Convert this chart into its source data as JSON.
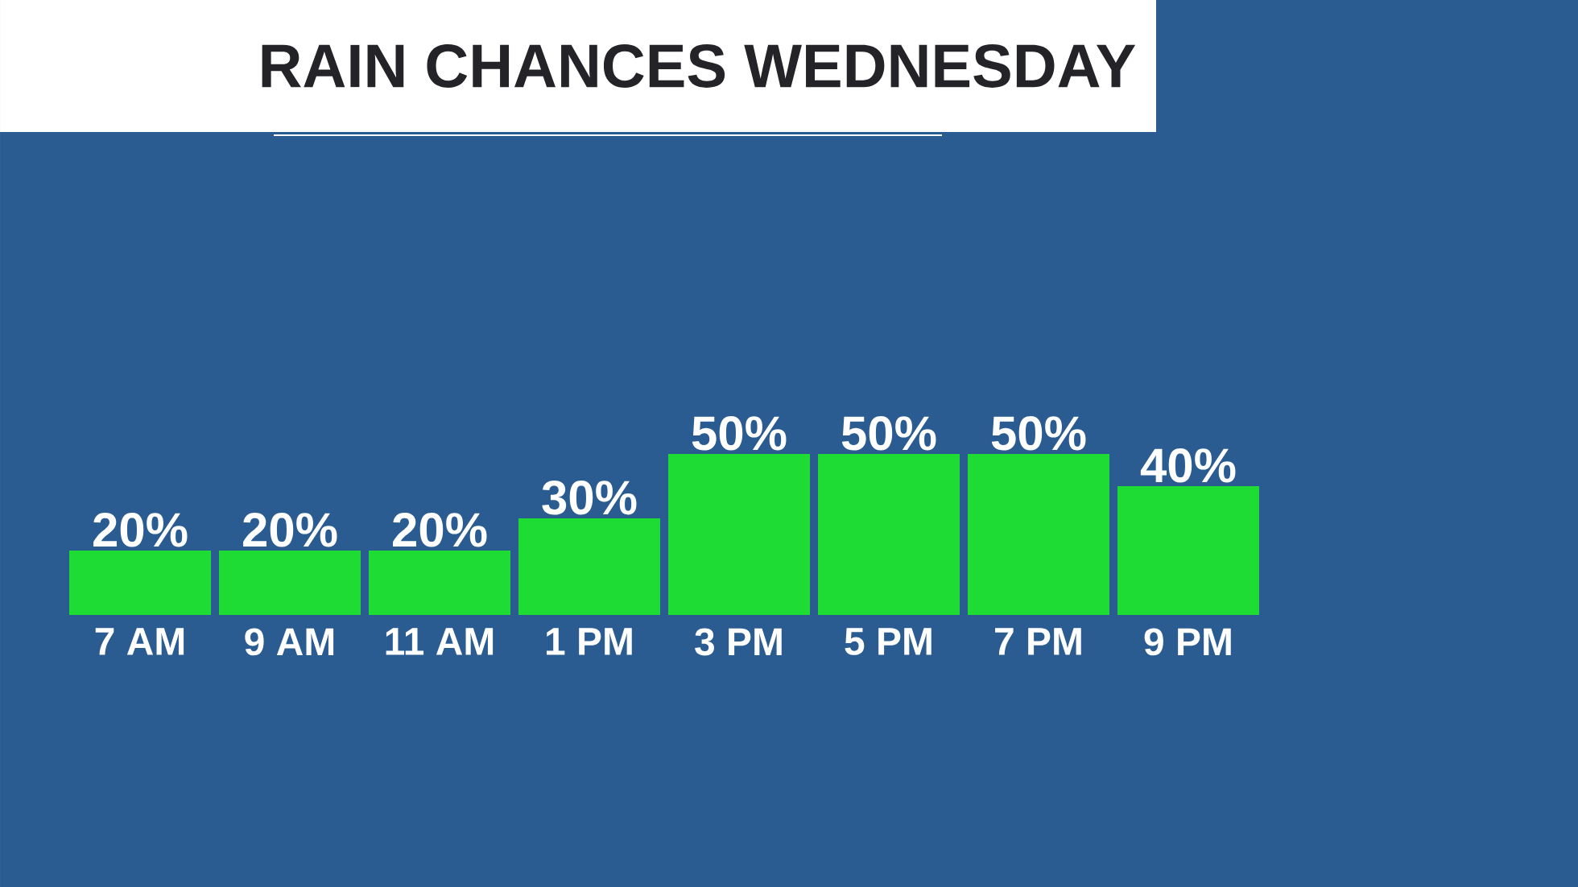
{
  "chart_data": {
    "type": "bar",
    "title": "RAIN CHANCES WEDNESDAY",
    "categories": [
      "7 AM",
      "9 AM",
      "11 AM",
      "1 PM",
      "3 PM",
      "5 PM",
      "7 PM",
      "9 PM"
    ],
    "values": [
      20,
      20,
      20,
      30,
      50,
      50,
      50,
      40
    ],
    "value_labels": [
      "20%",
      "20%",
      "20%",
      "30%",
      "50%",
      "50%",
      "50%",
      "40%"
    ],
    "color": "#1fdc34"
  }
}
